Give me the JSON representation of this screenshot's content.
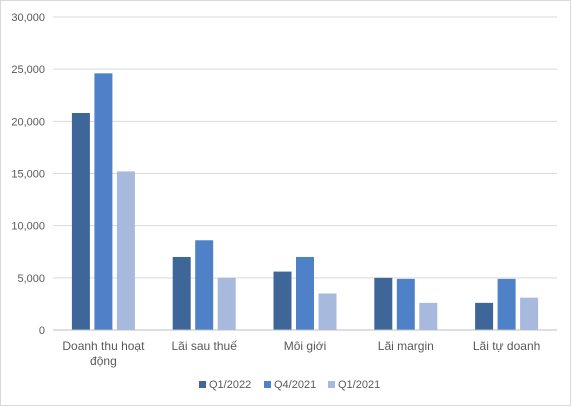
{
  "chart_data": {
    "type": "bar",
    "categories": [
      [
        "Doanh thu hoạt",
        "động"
      ],
      [
        "Lãi sau thuế"
      ],
      [
        "Môi giới"
      ],
      [
        "Lãi margin"
      ],
      [
        "Lãi tự doanh"
      ]
    ],
    "series": [
      {
        "name": "Q1/2022",
        "color": "#3f6699",
        "values": [
          20800,
          7000,
          5600,
          5000,
          2600
        ]
      },
      {
        "name": "Q4/2021",
        "color": "#4e81c7",
        "values": [
          24600,
          8600,
          7000,
          4900,
          4900
        ]
      },
      {
        "name": "Q1/2021",
        "color": "#a7b9dc",
        "values": [
          15200,
          5000,
          3500,
          2600,
          3100
        ]
      }
    ],
    "ylim": [
      0,
      30000
    ],
    "yticks": [
      "0",
      "5,000",
      "10,000",
      "15,000",
      "20,000",
      "25,000",
      "30,000"
    ],
    "grid": true,
    "legend_position": "bottom"
  }
}
